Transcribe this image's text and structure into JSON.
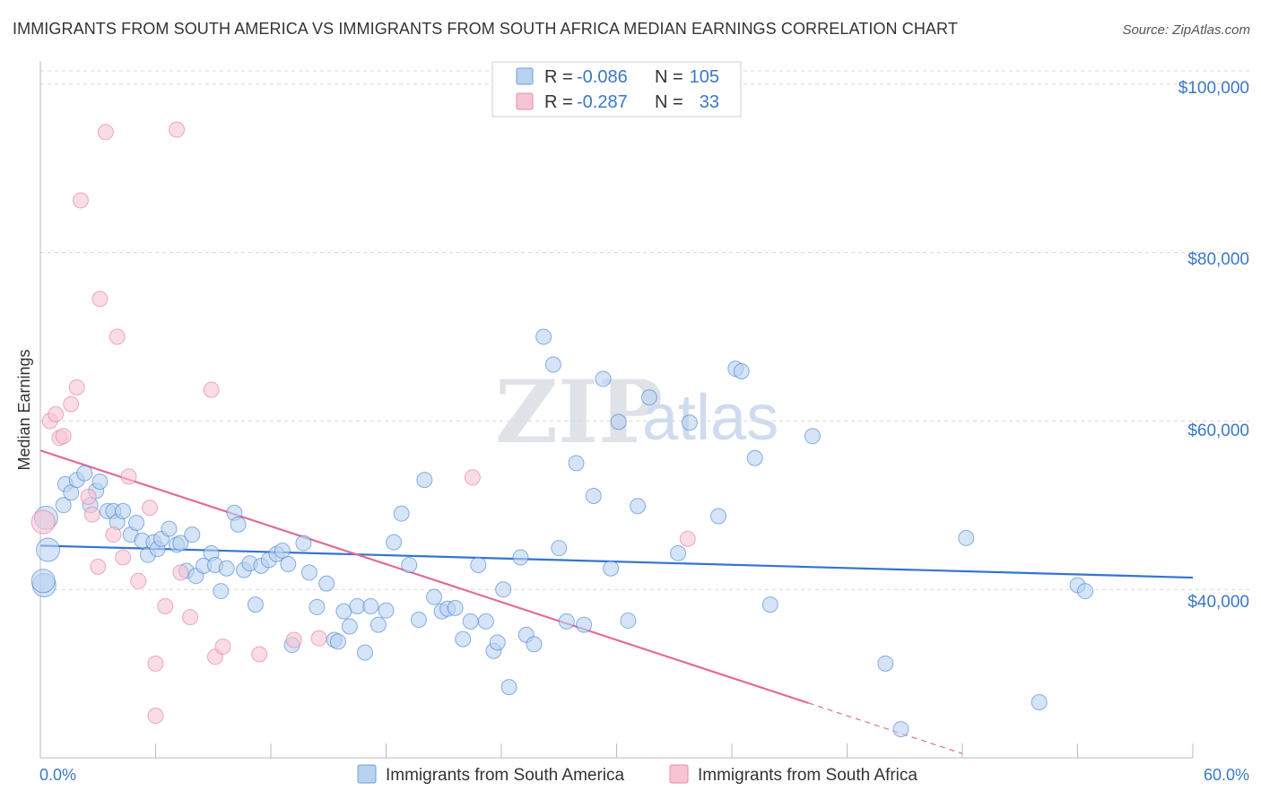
{
  "title": "IMMIGRANTS FROM SOUTH AMERICA VS IMMIGRANTS FROM SOUTH AFRICA MEDIAN EARNINGS CORRELATION CHART",
  "source": "Source: ZipAtlas.com",
  "watermark": {
    "left": "ZIP",
    "right": "atlas"
  },
  "legend_top": {
    "rows": [
      {
        "r_label": "R =",
        "r_value": "-0.086",
        "n_label": "N =",
        "n_value": "105",
        "color": "#a9c8ee"
      },
      {
        "r_label": "R =",
        "r_value": "-0.287",
        "n_label": "N =",
        "n_value": "33",
        "color": "#f5b8cb"
      }
    ]
  },
  "chart_data": {
    "type": "scatter",
    "title": "IMMIGRANTS FROM SOUTH AMERICA VS IMMIGRANTS FROM SOUTH AFRICA MEDIAN EARNINGS CORRELATION CHART",
    "xlabel": "",
    "ylabel": "Median Earnings",
    "xlim": [
      0,
      60
    ],
    "ylim": [
      20000,
      102000
    ],
    "x_tick_labels": {
      "min": "0.0%",
      "max": "60.0%"
    },
    "y_ticks": [
      40000,
      60000,
      80000,
      100000
    ],
    "y_tick_labels": [
      "$40,000",
      "$60,000",
      "$80,000",
      "$100,000"
    ],
    "grid": true,
    "legend_position": "bottom",
    "series": [
      {
        "name": "Immigrants from South America",
        "color": "#3474d0",
        "fill": "#b9d2f0",
        "trend": {
          "x": [
            0,
            60
          ],
          "y": [
            45200,
            41400
          ]
        },
        "points": [
          [
            0.3,
            48500
          ],
          [
            0.4,
            44700
          ],
          [
            0.2,
            40500
          ],
          [
            1.2,
            50000
          ],
          [
            1.3,
            52500
          ],
          [
            1.6,
            51500
          ],
          [
            1.9,
            53000
          ],
          [
            2.3,
            53800
          ],
          [
            2.6,
            50000
          ],
          [
            2.9,
            51700
          ],
          [
            3.1,
            52800
          ],
          [
            3.5,
            49300
          ],
          [
            3.8,
            49300
          ],
          [
            4.0,
            48000
          ],
          [
            4.3,
            49300
          ],
          [
            4.7,
            46500
          ],
          [
            5.0,
            47900
          ],
          [
            5.3,
            45800
          ],
          [
            5.6,
            44100
          ],
          [
            5.9,
            45600
          ],
          [
            6.1,
            44800
          ],
          [
            6.3,
            46000
          ],
          [
            6.7,
            47200
          ],
          [
            7.1,
            45300
          ],
          [
            7.3,
            45500
          ],
          [
            7.6,
            42200
          ],
          [
            7.9,
            46500
          ],
          [
            8.1,
            41600
          ],
          [
            8.5,
            42800
          ],
          [
            8.9,
            44300
          ],
          [
            9.1,
            42900
          ],
          [
            9.4,
            39800
          ],
          [
            9.7,
            42500
          ],
          [
            10.1,
            49100
          ],
          [
            10.3,
            47700
          ],
          [
            10.6,
            42300
          ],
          [
            10.9,
            43100
          ],
          [
            11.2,
            38200
          ],
          [
            11.5,
            42800
          ],
          [
            11.9,
            43500
          ],
          [
            12.3,
            44200
          ],
          [
            12.6,
            44600
          ],
          [
            12.9,
            43000
          ],
          [
            13.1,
            33400
          ],
          [
            13.7,
            45500
          ],
          [
            14.0,
            42000
          ],
          [
            14.4,
            37900
          ],
          [
            14.9,
            40700
          ],
          [
            15.3,
            34000
          ],
          [
            15.5,
            33800
          ],
          [
            15.8,
            37400
          ],
          [
            16.1,
            35600
          ],
          [
            16.5,
            38000
          ],
          [
            16.9,
            32500
          ],
          [
            17.2,
            38000
          ],
          [
            17.6,
            35800
          ],
          [
            18.0,
            37500
          ],
          [
            18.4,
            45600
          ],
          [
            18.8,
            49000
          ],
          [
            19.2,
            42900
          ],
          [
            19.7,
            36400
          ],
          [
            20.0,
            53000
          ],
          [
            20.5,
            39100
          ],
          [
            20.9,
            37400
          ],
          [
            21.2,
            37700
          ],
          [
            21.6,
            37800
          ],
          [
            22.0,
            34100
          ],
          [
            22.4,
            36200
          ],
          [
            22.8,
            42900
          ],
          [
            23.2,
            36200
          ],
          [
            23.6,
            32700
          ],
          [
            23.8,
            33700
          ],
          [
            24.1,
            40000
          ],
          [
            24.4,
            28400
          ],
          [
            25.0,
            43800
          ],
          [
            25.3,
            34600
          ],
          [
            25.7,
            33500
          ],
          [
            26.2,
            70000
          ],
          [
            26.7,
            66700
          ],
          [
            27.0,
            44900
          ],
          [
            27.4,
            36200
          ],
          [
            27.9,
            55000
          ],
          [
            28.3,
            35800
          ],
          [
            28.8,
            51100
          ],
          [
            29.3,
            65000
          ],
          [
            29.7,
            42500
          ],
          [
            30.1,
            59900
          ],
          [
            30.6,
            36300
          ],
          [
            31.1,
            49900
          ],
          [
            31.7,
            62800
          ],
          [
            33.2,
            44300
          ],
          [
            33.8,
            59800
          ],
          [
            35.3,
            48700
          ],
          [
            36.2,
            66200
          ],
          [
            36.5,
            65900
          ],
          [
            37.2,
            55600
          ],
          [
            38.0,
            38200
          ],
          [
            40.2,
            58200
          ],
          [
            44.0,
            31200
          ],
          [
            44.8,
            23400
          ],
          [
            48.2,
            46100
          ],
          [
            52.0,
            26600
          ],
          [
            54.0,
            40500
          ],
          [
            54.4,
            39800
          ],
          [
            0.15,
            41000
          ]
        ]
      },
      {
        "name": "Immigrants from South Africa",
        "color": "#e36b97",
        "fill": "#f7c4d4",
        "trend": {
          "x": [
            0,
            40
          ],
          "y": [
            56500,
            26500
          ]
        },
        "trend_dashed": {
          "x": [
            40,
            48
          ],
          "y": [
            26500,
            20500
          ]
        },
        "points": [
          [
            0.15,
            48000
          ],
          [
            0.5,
            60000
          ],
          [
            0.8,
            60800
          ],
          [
            1.0,
            58000
          ],
          [
            1.2,
            58200
          ],
          [
            1.6,
            62000
          ],
          [
            1.9,
            64000
          ],
          [
            2.1,
            86200
          ],
          [
            2.5,
            51000
          ],
          [
            2.7,
            48900
          ],
          [
            3.0,
            42700
          ],
          [
            3.1,
            74500
          ],
          [
            3.4,
            94300
          ],
          [
            3.8,
            46500
          ],
          [
            4.0,
            70000
          ],
          [
            4.3,
            43800
          ],
          [
            4.6,
            53400
          ],
          [
            5.1,
            41000
          ],
          [
            5.7,
            49700
          ],
          [
            6.0,
            31200
          ],
          [
            6.0,
            25000
          ],
          [
            6.5,
            38000
          ],
          [
            7.1,
            94600
          ],
          [
            7.3,
            42000
          ],
          [
            7.8,
            36700
          ],
          [
            8.9,
            63700
          ],
          [
            9.1,
            32000
          ],
          [
            9.5,
            33200
          ],
          [
            11.4,
            32300
          ],
          [
            13.2,
            34000
          ],
          [
            14.5,
            34200
          ],
          [
            22.5,
            53300
          ],
          [
            33.7,
            46000
          ]
        ]
      }
    ]
  }
}
